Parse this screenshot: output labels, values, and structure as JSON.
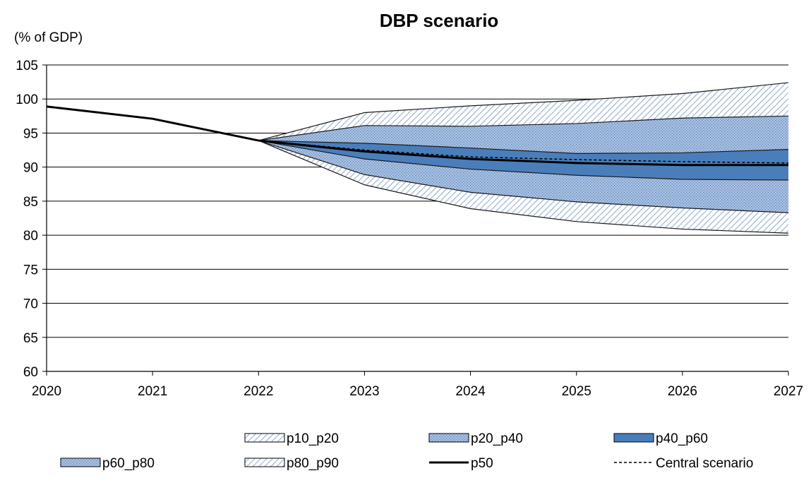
{
  "chart_data": {
    "type": "area",
    "title": "DBP scenario",
    "ylabel": "(% of GDP)",
    "xlabel": "",
    "x": [
      "2020",
      "2021",
      "2022",
      "2023",
      "2024",
      "2025",
      "2026",
      "2027"
    ],
    "ylim": [
      60,
      105
    ],
    "yticks": [
      60,
      65,
      70,
      75,
      80,
      85,
      90,
      95,
      100,
      105
    ],
    "grid": true,
    "legend_position": "bottom",
    "fan_start_year": "2022",
    "bands": [
      {
        "name": "p10_p20",
        "fill": "hatch-light",
        "lower": [
          93.9,
          87.4,
          83.9,
          82.0,
          80.9,
          80.3
        ],
        "upper": [
          93.9,
          88.9,
          86.3,
          84.9,
          84.0,
          83.3
        ]
      },
      {
        "name": "p20_p40",
        "fill": "dots",
        "lower": [
          93.9,
          88.9,
          86.3,
          84.9,
          84.0,
          83.3
        ],
        "upper": [
          93.9,
          91.2,
          89.7,
          88.8,
          88.2,
          88.1
        ]
      },
      {
        "name": "p40_p60",
        "fill": "solid",
        "lower": [
          93.9,
          91.2,
          89.7,
          88.8,
          88.2,
          88.1
        ],
        "upper": [
          93.9,
          93.5,
          92.8,
          92.0,
          92.1,
          92.6
        ]
      },
      {
        "name": "p60_p80",
        "fill": "dots",
        "lower": [
          93.9,
          93.5,
          92.8,
          92.0,
          92.1,
          92.6
        ],
        "upper": [
          93.9,
          96.1,
          96.0,
          96.4,
          97.2,
          97.5
        ]
      },
      {
        "name": "p80_p90",
        "fill": "hatch-light",
        "lower": [
          93.9,
          96.1,
          96.0,
          96.4,
          97.2,
          97.5
        ],
        "upper": [
          93.9,
          98.0,
          99.0,
          99.8,
          100.8,
          102.4
        ]
      }
    ],
    "series": [
      {
        "name": "p50",
        "style": "solid",
        "x": [
          "2020",
          "2021",
          "2022",
          "2023",
          "2024",
          "2025",
          "2026",
          "2027"
        ],
        "values": [
          98.9,
          97.1,
          93.9,
          92.3,
          91.2,
          90.6,
          90.3,
          90.3
        ]
      },
      {
        "name": "Central scenario",
        "style": "dashed",
        "x": [
          "2022",
          "2023",
          "2024",
          "2025",
          "2026",
          "2027"
        ],
        "values": [
          93.9,
          92.5,
          91.5,
          91.1,
          90.8,
          90.6
        ]
      }
    ],
    "legend": [
      "p10_p20",
      "p20_p40",
      "p40_p60",
      "p60_p80",
      "p80_p90",
      "p50",
      "Central scenario"
    ]
  },
  "colors": {
    "accent_blue": "#4a7ebb",
    "light_blue": "#a8c0e0",
    "hatch_line": "#8fa8cc",
    "axis": "#000000"
  }
}
